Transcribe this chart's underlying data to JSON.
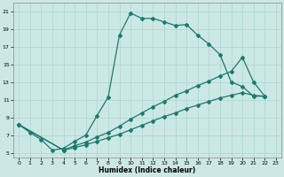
{
  "xlabel": "Humidex (Indice chaleur)",
  "bg_color": "#cce8e4",
  "line_color": "#1a7a6e",
  "grid_color": "#aad4cc",
  "xlim": [
    -0.5,
    23.5
  ],
  "ylim": [
    4.5,
    22
  ],
  "xticks": [
    0,
    1,
    2,
    3,
    4,
    5,
    6,
    7,
    8,
    9,
    10,
    11,
    12,
    13,
    14,
    15,
    16,
    17,
    18,
    19,
    20,
    21,
    22,
    23
  ],
  "yticks": [
    5,
    7,
    9,
    11,
    13,
    15,
    17,
    19,
    21
  ],
  "c1x": [
    0,
    1,
    2,
    3,
    4,
    5,
    6,
    7,
    8,
    9,
    10,
    11,
    12,
    13,
    14,
    15,
    16,
    17,
    18,
    19,
    20,
    21,
    22
  ],
  "c1y": [
    8.2,
    7.3,
    6.5,
    5.3,
    5.5,
    6.3,
    7.0,
    9.2,
    11.3,
    18.3,
    20.8,
    20.2,
    20.2,
    19.8,
    19.4,
    19.5,
    18.3,
    17.3,
    16.1,
    13.0,
    12.5,
    11.4,
    11.4
  ],
  "c2x": [
    0,
    4,
    5,
    6,
    7,
    8,
    9,
    10,
    11,
    12,
    13,
    14,
    15,
    16,
    17,
    18,
    19,
    20,
    21,
    22
  ],
  "c2y": [
    8.2,
    5.3,
    5.8,
    6.2,
    6.8,
    7.3,
    8.0,
    8.8,
    9.5,
    10.2,
    10.8,
    11.5,
    12.0,
    12.6,
    13.1,
    13.7,
    14.2,
    15.8,
    13.0,
    11.4
  ],
  "c3x": [
    0,
    4,
    5,
    6,
    7,
    8,
    9,
    10,
    11,
    12,
    13,
    14,
    15,
    16,
    17,
    18,
    19,
    20,
    21,
    22
  ],
  "c3y": [
    8.2,
    5.3,
    5.6,
    5.9,
    6.3,
    6.7,
    7.1,
    7.6,
    8.1,
    8.6,
    9.1,
    9.5,
    10.0,
    10.4,
    10.8,
    11.2,
    11.5,
    11.8,
    11.5,
    11.4
  ]
}
